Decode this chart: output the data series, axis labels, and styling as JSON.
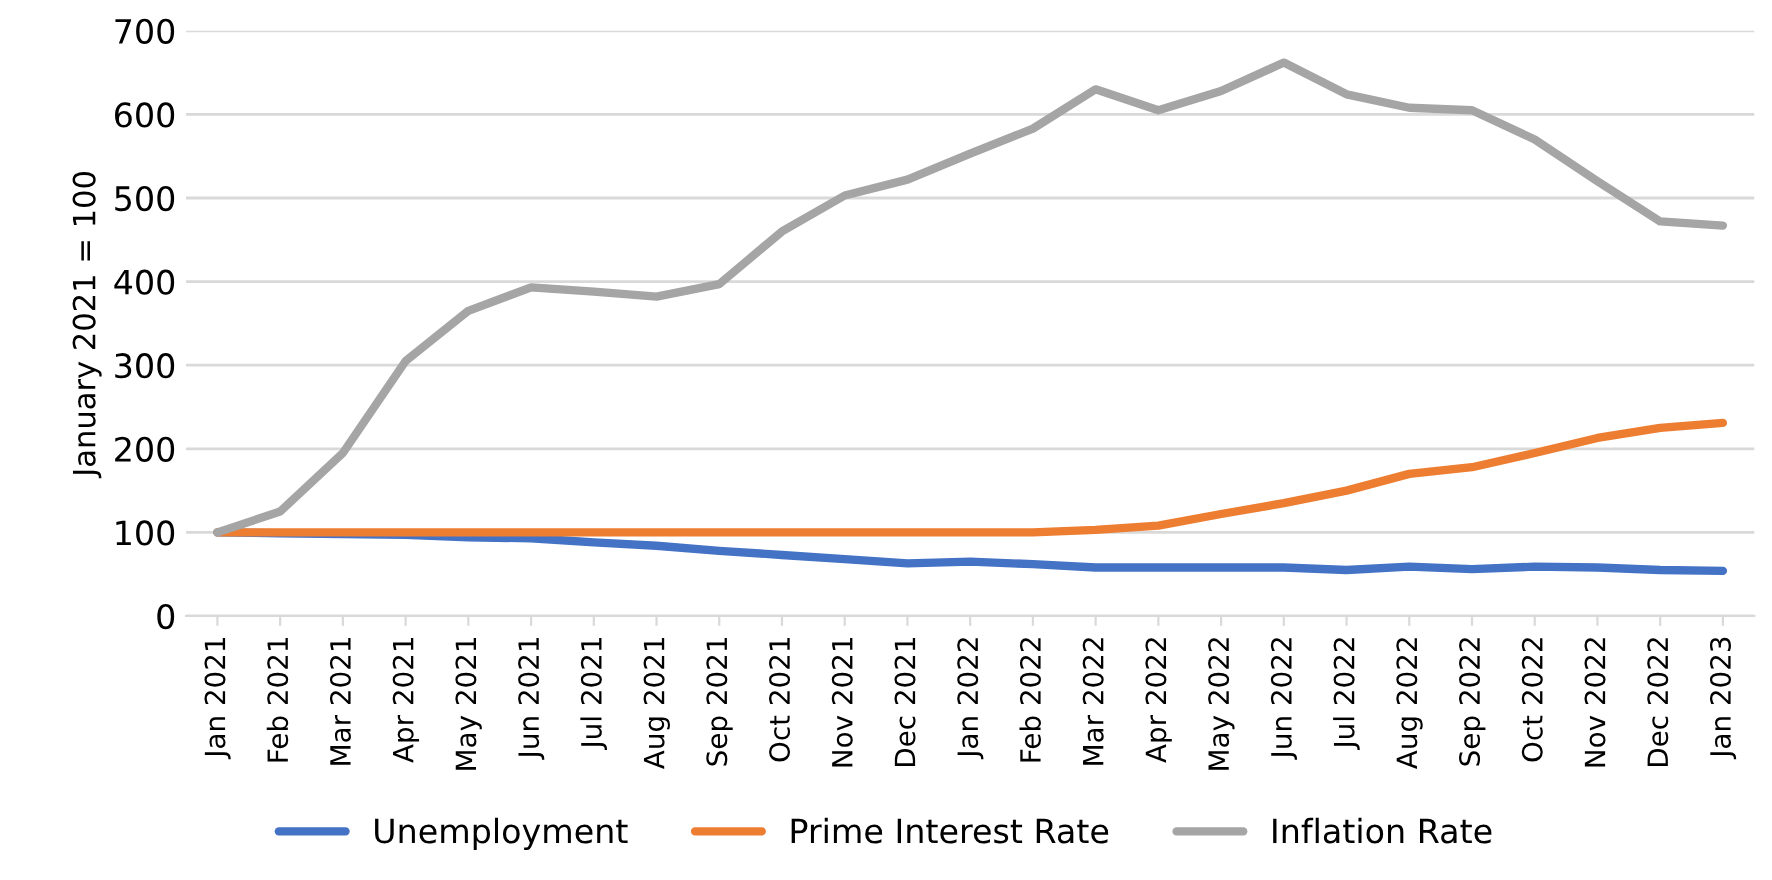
{
  "chart_data": {
    "type": "line",
    "ylabel": "January 2021 = 100",
    "categories": [
      "Jan 2021",
      "Feb 2021",
      "Mar 2021",
      "Apr 2021",
      "May 2021",
      "Jun 2021",
      "Jul 2021",
      "Aug 2021",
      "Sep 2021",
      "Oct 2021",
      "Nov 2021",
      "Dec 2021",
      "Jan 2022",
      "Feb 2022",
      "Mar 2022",
      "Apr 2022",
      "May 2022",
      "Jun 2022",
      "Jul 2022",
      "Aug 2022",
      "Sep 2022",
      "Oct 2022",
      "Nov 2022",
      "Dec 2022",
      "Jan 2023"
    ],
    "series": [
      {
        "name": "Unemployment",
        "color": "#4472c4",
        "values": [
          100,
          99,
          98,
          97,
          94,
          93,
          88,
          84,
          78,
          73,
          68,
          63,
          65,
          62,
          58,
          58,
          58,
          58,
          55,
          59,
          56,
          59,
          58,
          55,
          54
        ]
      },
      {
        "name": "Prime Interest Rate",
        "color": "#ed7d31",
        "values": [
          100,
          100,
          100,
          100,
          100,
          100,
          100,
          100,
          100,
          100,
          100,
          100,
          100,
          100,
          103,
          108,
          122,
          135,
          150,
          170,
          178,
          195,
          213,
          225,
          231
        ]
      },
      {
        "name": "Inflation Rate",
        "color": "#a5a5a5",
        "values": [
          100,
          125,
          195,
          305,
          365,
          393,
          388,
          382,
          397,
          460,
          503,
          522,
          553,
          583,
          630,
          605,
          628,
          662,
          624,
          608,
          605,
          570,
          520,
          472,
          467
        ]
      }
    ],
    "ylim": [
      0,
      700
    ],
    "yticks": [
      0,
      100,
      200,
      300,
      400,
      500,
      600,
      700
    ],
    "grid": "y",
    "legend": "bottom",
    "marker": "none",
    "line_style": "solid"
  }
}
